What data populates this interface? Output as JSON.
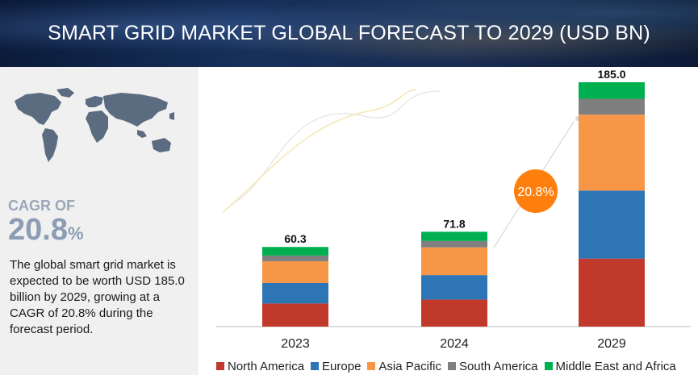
{
  "header": {
    "title": "SMART GRID MARKET GLOBAL FORECAST TO 2029 (USD BN)"
  },
  "left_panel": {
    "cagr_label": "CAGR OF",
    "cagr_number": "20.8",
    "cagr_percent_sign": "%",
    "description": "The global smart grid market is expected to be worth USD 185.0 billion by 2029, growing at a CAGR of 20.8% during the forecast period."
  },
  "chart_data": {
    "type": "bar",
    "stacked": true,
    "categories": [
      "2023",
      "2024",
      "2029"
    ],
    "totals": [
      "60.3",
      "71.8",
      "185.0"
    ],
    "series": [
      {
        "name": "North America",
        "color": "#c0392b",
        "values": [
          17.5,
          20.5,
          51.5
        ]
      },
      {
        "name": "Europe",
        "color": "#2e75b6",
        "values": [
          15.5,
          18.5,
          51.5
        ]
      },
      {
        "name": "Asia Pacific",
        "color": "#f79646",
        "values": [
          16.5,
          21.0,
          57.5
        ]
      },
      {
        "name": "South America",
        "color": "#7f7f7f",
        "values": [
          4.3,
          4.8,
          12.0
        ]
      },
      {
        "name": "Middle East and Africa",
        "color": "#00b050",
        "values": [
          6.5,
          7.0,
          12.5
        ]
      }
    ],
    "growth_badge": "20.8%",
    "ylim": [
      0,
      185.0
    ]
  }
}
